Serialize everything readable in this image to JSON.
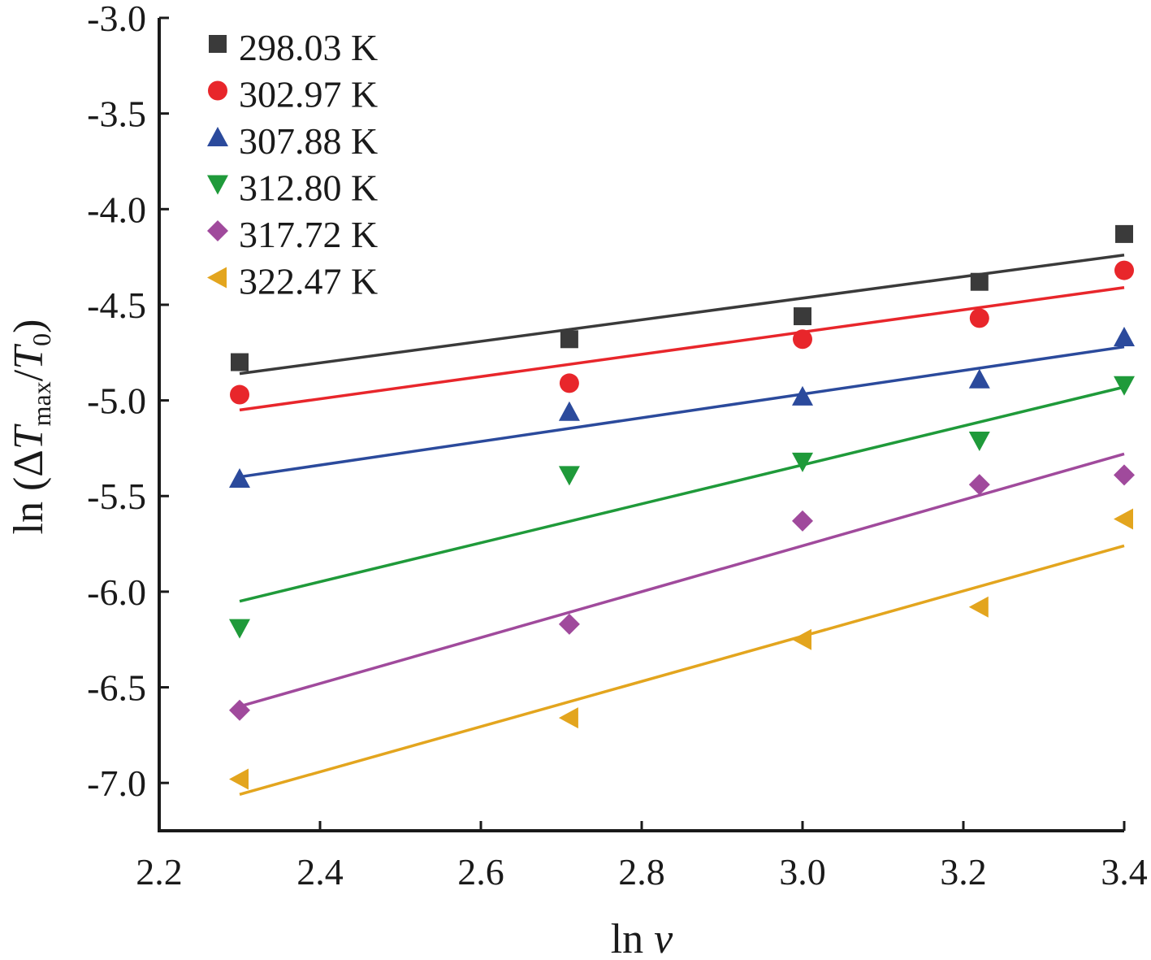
{
  "chart_data": {
    "type": "scatter",
    "xlabel": "ln v",
    "ylabel": "ln (ΔTmax/T0)",
    "xlim": [
      2.2,
      3.4
    ],
    "ylim": [
      -7.25,
      -3.0
    ],
    "xticks": [
      "2.2",
      "2.4",
      "2.6",
      "2.8",
      "3.0",
      "3.2",
      "3.4"
    ],
    "yticks": [
      "-3.0",
      "-3.5",
      "-4.0",
      "-4.5",
      "-5.0",
      "-5.5",
      "-6.0",
      "-6.5",
      "-7.0"
    ],
    "grid": false,
    "legend_position": "top-left",
    "x": [
      2.3,
      2.71,
      3.0,
      3.22,
      3.4
    ],
    "series": [
      {
        "name": "298.03 K",
        "marker": "square",
        "color": "#3a3a3a",
        "values": [
          -4.8,
          -4.68,
          -4.56,
          -4.38,
          -4.13
        ],
        "fit": [
          -4.86,
          -4.24
        ]
      },
      {
        "name": "302.97 K",
        "marker": "circle",
        "color": "#e8262b",
        "values": [
          -4.97,
          -4.91,
          -4.68,
          -4.57,
          -4.32
        ],
        "fit": [
          -5.05,
          -4.41
        ]
      },
      {
        "name": "307.88 K",
        "marker": "triangle-up",
        "color": "#2b4a9c",
        "values": [
          -5.41,
          -5.06,
          -4.98,
          -4.89,
          -4.67
        ],
        "fit": [
          -5.4,
          -4.72
        ]
      },
      {
        "name": "312.80 K",
        "marker": "triangle-down",
        "color": "#1f9a3a",
        "values": [
          -6.19,
          -5.39,
          -5.32,
          -5.21,
          -4.92
        ],
        "fit": [
          -6.05,
          -4.93
        ]
      },
      {
        "name": "317.72 K",
        "marker": "diamond",
        "color": "#a04a9c",
        "values": [
          -6.62,
          -6.17,
          -5.63,
          -5.44,
          -5.39
        ],
        "fit": [
          -6.6,
          -5.28
        ]
      },
      {
        "name": "322.47 K",
        "marker": "triangle-left",
        "color": "#e3a51e",
        "values": [
          -6.98,
          -6.66,
          -6.25,
          -6.08,
          -5.62
        ],
        "fit": [
          -7.06,
          -5.76
        ]
      }
    ]
  }
}
